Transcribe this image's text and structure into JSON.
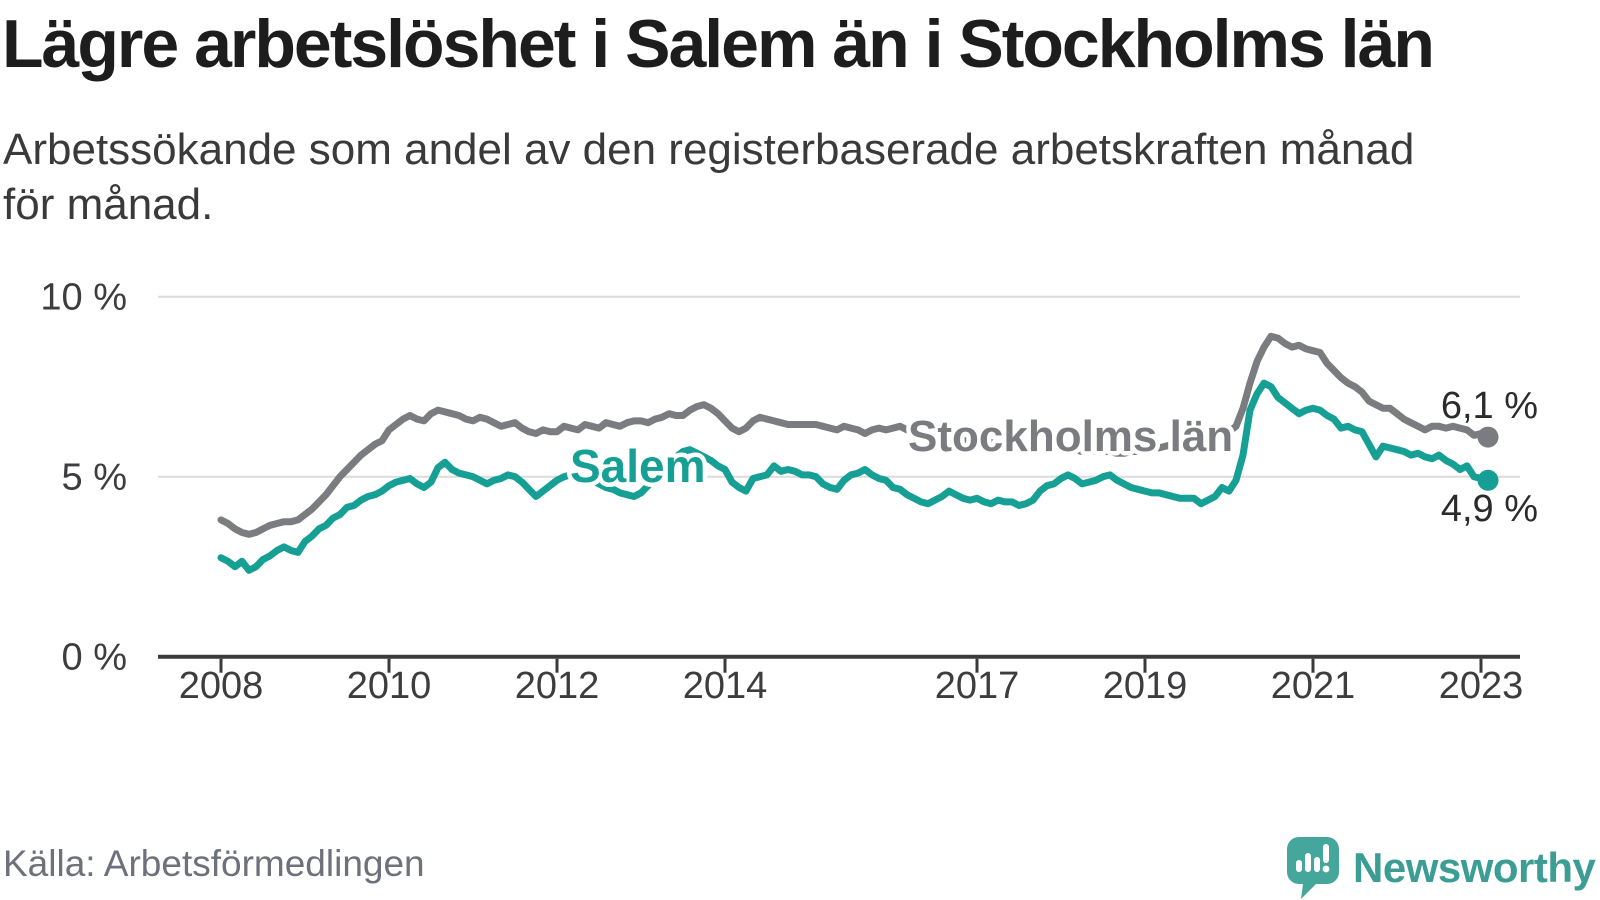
{
  "title": "Lägre arbetslöshet i Salem än i Stockholms län",
  "subtitle_lines": [
    "Arbetssökande som andel av den registerbaserade arbetskraften månad",
    "för månad."
  ],
  "source": "Källa: Arbetsförmedlingen",
  "branding": {
    "name": "Newsworthy"
  },
  "colors": {
    "title": "#1d1d1d",
    "subtitle": "#3a3a3a",
    "gridline": "#dcdcdc",
    "axis": "#3a3a3a",
    "axis_label": "#3d3d40",
    "end_label": "#2b2b2b",
    "source_text": "#6e717b",
    "salem": "#16a095",
    "stockholm": "#7b7c80",
    "logo": "#45a69c",
    "logo_text": "#3b9d94"
  },
  "chart_data": {
    "type": "line",
    "title": "Lägre arbetslöshet i Salem än i Stockholms län",
    "subtitle": "Arbetssökande som andel av den registerbaserade arbetskraften månad för månad.",
    "x_unit": "month",
    "x_start": "2008-01",
    "x_end": "2023-02",
    "ylim": [
      0,
      10.8
    ],
    "grid": "horizontal",
    "x_ticks": [
      {
        "label": "2008",
        "year": 2008
      },
      {
        "label": "2010",
        "year": 2010
      },
      {
        "label": "2012",
        "year": 2012
      },
      {
        "label": "2014",
        "year": 2014
      },
      {
        "label": "2017",
        "year": 2017
      },
      {
        "label": "2019",
        "year": 2019
      },
      {
        "label": "2021",
        "year": 2021
      },
      {
        "label": "2023",
        "year": 2023
      }
    ],
    "y_ticks": [
      {
        "label": "0 %",
        "value": 0
      },
      {
        "label": "5 %",
        "value": 5
      },
      {
        "label": "10 %",
        "value": 10
      }
    ],
    "series": [
      {
        "name": "Stockholms län",
        "color": "#7b7c80",
        "end_label": "6,1 %",
        "end_value": 6.1,
        "values": [
          3.8,
          3.7,
          3.55,
          3.45,
          3.4,
          3.45,
          3.55,
          3.65,
          3.7,
          3.75,
          3.75,
          3.8,
          3.95,
          4.1,
          4.3,
          4.5,
          4.75,
          5.0,
          5.2,
          5.4,
          5.6,
          5.75,
          5.9,
          6.0,
          6.3,
          6.45,
          6.6,
          6.7,
          6.6,
          6.55,
          6.75,
          6.85,
          6.8,
          6.75,
          6.7,
          6.6,
          6.55,
          6.65,
          6.6,
          6.5,
          6.4,
          6.45,
          6.5,
          6.35,
          6.25,
          6.2,
          6.3,
          6.25,
          6.25,
          6.4,
          6.35,
          6.3,
          6.45,
          6.4,
          6.35,
          6.5,
          6.45,
          6.4,
          6.5,
          6.55,
          6.55,
          6.5,
          6.6,
          6.65,
          6.75,
          6.7,
          6.7,
          6.85,
          6.95,
          7.0,
          6.9,
          6.75,
          6.55,
          6.35,
          6.25,
          6.35,
          6.55,
          6.65,
          6.6,
          6.55,
          6.5,
          6.45,
          6.45,
          6.45,
          6.45,
          6.45,
          6.4,
          6.35,
          6.3,
          6.4,
          6.35,
          6.3,
          6.2,
          6.3,
          6.35,
          6.3,
          6.35,
          6.4,
          6.3,
          6.25,
          6.2,
          6.2,
          6.15,
          6.1,
          6.1,
          6.05,
          6.0,
          6.0,
          6.0,
          5.95,
          5.95,
          5.9,
          5.9,
          5.85,
          5.85,
          5.8,
          5.8,
          5.8,
          5.8,
          5.8,
          5.8,
          5.75,
          5.75,
          5.7,
          5.7,
          5.7,
          5.7,
          5.7,
          5.65,
          5.65,
          5.7,
          5.7,
          5.75,
          5.8,
          5.8,
          5.85,
          5.9,
          5.9,
          5.95,
          6.0,
          6.0,
          6.05,
          6.1,
          6.15,
          6.25,
          6.4,
          6.9,
          7.6,
          8.2,
          8.6,
          8.9,
          8.85,
          8.7,
          8.6,
          8.65,
          8.55,
          8.5,
          8.45,
          8.15,
          7.95,
          7.75,
          7.6,
          7.5,
          7.35,
          7.1,
          7.0,
          6.9,
          6.9,
          6.75,
          6.6,
          6.5,
          6.4,
          6.3,
          6.4,
          6.4,
          6.35,
          6.4,
          6.35,
          6.3,
          6.15,
          6.2,
          6.1
        ]
      },
      {
        "name": "Salem",
        "color": "#16a095",
        "end_label": "4,9 %",
        "end_value": 4.9,
        "values": [
          2.75,
          2.65,
          2.5,
          2.65,
          2.4,
          2.5,
          2.7,
          2.8,
          2.95,
          3.05,
          2.95,
          2.9,
          3.2,
          3.35,
          3.55,
          3.65,
          3.85,
          3.95,
          4.15,
          4.2,
          4.35,
          4.45,
          4.5,
          4.6,
          4.75,
          4.85,
          4.9,
          4.95,
          4.8,
          4.7,
          4.85,
          5.25,
          5.4,
          5.2,
          5.1,
          5.05,
          5.0,
          4.9,
          4.8,
          4.9,
          4.95,
          5.05,
          5.0,
          4.85,
          4.65,
          4.45,
          4.6,
          4.75,
          4.9,
          5.0,
          5.05,
          5.1,
          5.0,
          4.9,
          4.8,
          4.7,
          4.65,
          4.55,
          4.5,
          4.45,
          4.55,
          4.75,
          4.95,
          5.15,
          5.35,
          5.55,
          5.7,
          5.75,
          5.65,
          5.55,
          5.45,
          5.3,
          5.2,
          4.85,
          4.7,
          4.6,
          4.95,
          5.0,
          5.05,
          5.3,
          5.15,
          5.2,
          5.15,
          5.05,
          5.05,
          5.0,
          4.8,
          4.7,
          4.65,
          4.9,
          5.05,
          5.1,
          5.2,
          5.05,
          4.95,
          4.9,
          4.7,
          4.65,
          4.5,
          4.4,
          4.3,
          4.25,
          4.35,
          4.45,
          4.6,
          4.5,
          4.4,
          4.35,
          4.4,
          4.3,
          4.25,
          4.35,
          4.3,
          4.3,
          4.2,
          4.25,
          4.35,
          4.6,
          4.75,
          4.8,
          4.95,
          5.05,
          4.95,
          4.8,
          4.85,
          4.9,
          5.0,
          5.05,
          4.9,
          4.8,
          4.7,
          4.65,
          4.6,
          4.55,
          4.55,
          4.5,
          4.45,
          4.4,
          4.4,
          4.4,
          4.25,
          4.35,
          4.45,
          4.7,
          4.6,
          4.9,
          5.6,
          6.85,
          7.3,
          7.6,
          7.5,
          7.2,
          7.05,
          6.9,
          6.75,
          6.85,
          6.9,
          6.85,
          6.7,
          6.6,
          6.35,
          6.4,
          6.3,
          6.25,
          5.9,
          5.55,
          5.85,
          5.8,
          5.75,
          5.7,
          5.6,
          5.65,
          5.55,
          5.5,
          5.6,
          5.45,
          5.35,
          5.2,
          5.3,
          5.0,
          4.95,
          4.9
        ]
      }
    ]
  }
}
